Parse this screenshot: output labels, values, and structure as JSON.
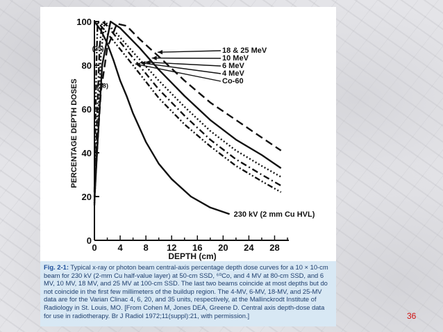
{
  "slide_number": "36",
  "caption": {
    "fig_label": "Fig. 2-1:",
    "text": "Typical x-ray or photon beam central-axis percentage depth dose curves for a 10 × 10-cm beam for 230 kV (2-mm Cu half-value layer) at 50-cm SSD, ⁶⁰Co, and 4 MV at 80-cm SSD, and 6 MV, 10 MV, 18 MV, and 25 MV at 100-cm SSD. The last two beams coincide at most depths but do not coincide in the first few millimeters of the buildup region. The 4-MV, 6-MV, 18-MV, and 25-MV data are for the Varian Clinac 4, 6, 20, and 35 units, respectively, at the Mallinckrodt Institute of Radiology in St. Louis, MO. [From Cohen M, Jones DEA, Greene D. Central axis depth-dose data for use in radiotherapy. Br J Radiol 1972;11(suppl):21, with permission.]"
  },
  "chart_data": {
    "type": "line",
    "title": "",
    "xlabel": "DEPTH (cm)",
    "ylabel": "PERCENTAGE DEPTH DOSES",
    "xlim": [
      0,
      30
    ],
    "ylim": [
      0,
      100
    ],
    "x_ticks": [
      0,
      4,
      8,
      12,
      16,
      20,
      24,
      28
    ],
    "y_ticks": [
      0,
      20,
      40,
      60,
      80,
      100
    ],
    "x_tick_labels": [
      "0",
      "4",
      "8",
      "12",
      "16",
      "20",
      "24",
      "28"
    ],
    "y_tick_labels": [
      "0",
      "20",
      "40",
      "60",
      "80",
      "100"
    ],
    "grid": false,
    "legend": "inline labels with arrows at upper right",
    "annotations": [
      {
        "text": "(25)",
        "x": 0.5,
        "y": 88
      },
      {
        "text": "(18)",
        "x": 1.2,
        "y": 71
      }
    ],
    "series": [
      {
        "name": "18 & 25 MeV",
        "style": "long-dash",
        "points": [
          [
            0,
            20
          ],
          [
            0.5,
            45
          ],
          [
            1,
            68
          ],
          [
            2,
            88
          ],
          [
            3.5,
            99
          ],
          [
            5,
            98
          ],
          [
            7,
            92
          ],
          [
            10,
            84
          ],
          [
            14,
            73
          ],
          [
            18,
            63
          ],
          [
            22,
            55
          ],
          [
            26,
            47
          ],
          [
            29,
            41
          ]
        ]
      },
      {
        "name": "10 MeV",
        "style": "solid",
        "points": [
          [
            0,
            18
          ],
          [
            0.5,
            45
          ],
          [
            1.2,
            80
          ],
          [
            2.5,
            100
          ],
          [
            4,
            97
          ],
          [
            7,
            88
          ],
          [
            10,
            78
          ],
          [
            14,
            66
          ],
          [
            18,
            55
          ],
          [
            22,
            46
          ],
          [
            26,
            39
          ],
          [
            29,
            33
          ]
        ]
      },
      {
        "name": "6 MeV",
        "style": "dotted",
        "points": [
          [
            0,
            17
          ],
          [
            0.5,
            50
          ],
          [
            1,
            85
          ],
          [
            1.6,
            100
          ],
          [
            3,
            96
          ],
          [
            6,
            86
          ],
          [
            10,
            73
          ],
          [
            14,
            61
          ],
          [
            18,
            50
          ],
          [
            22,
            41
          ],
          [
            26,
            34
          ],
          [
            29,
            29
          ]
        ]
      },
      {
        "name": "4 MeV",
        "style": "dash-dot",
        "points": [
          [
            0,
            16
          ],
          [
            0.4,
            55
          ],
          [
            0.8,
            88
          ],
          [
            1.2,
            100
          ],
          [
            2,
            98
          ],
          [
            5,
            87
          ],
          [
            10,
            69
          ],
          [
            14,
            57
          ],
          [
            18,
            46
          ],
          [
            22,
            37
          ],
          [
            26,
            30
          ],
          [
            29,
            25
          ]
        ]
      },
      {
        "name": "Co-60",
        "style": "dash-dot-dot",
        "points": [
          [
            0,
            22
          ],
          [
            0.3,
            80
          ],
          [
            0.5,
            100
          ],
          [
            1,
            98
          ],
          [
            3,
            91
          ],
          [
            6,
            80
          ],
          [
            10,
            65
          ],
          [
            14,
            53
          ],
          [
            18,
            43
          ],
          [
            22,
            34
          ],
          [
            26,
            27
          ],
          [
            29,
            22
          ]
        ]
      },
      {
        "name": "230 kV (2 mm Cu HVL)",
        "style": "solid",
        "points": [
          [
            0,
            100
          ],
          [
            1,
            96
          ],
          [
            2,
            90
          ],
          [
            3,
            82
          ],
          [
            4,
            73
          ],
          [
            5,
            66
          ],
          [
            6,
            58
          ],
          [
            8,
            45
          ],
          [
            10,
            35
          ],
          [
            12,
            28
          ],
          [
            15,
            20
          ],
          [
            18,
            15
          ],
          [
            21,
            12
          ]
        ]
      }
    ]
  }
}
